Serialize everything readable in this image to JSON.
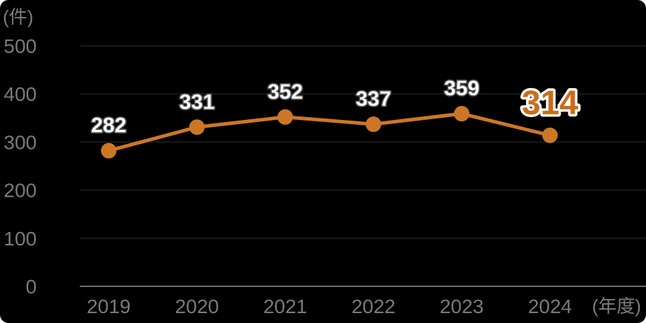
{
  "chart_data": {
    "type": "line",
    "categories": [
      "2019",
      "2020",
      "2021",
      "2022",
      "2023",
      "2024"
    ],
    "values": [
      282,
      331,
      352,
      337,
      359,
      314
    ],
    "data_labels": [
      "282",
      "331",
      "352",
      "337",
      "359",
      "314"
    ],
    "y_unit_label": "(件)",
    "x_unit_label": "(年度)",
    "yticks": [
      0,
      100,
      200,
      300,
      400,
      500
    ],
    "ylim": [
      0,
      500
    ],
    "grid": true,
    "legend": "none",
    "highlight_last": true,
    "colors": {
      "background": "#000000",
      "line": "#cd7726",
      "marker": "#cd7726",
      "grid": "#1a1a1a",
      "axis": "#6e6e6e",
      "tick_label": "#7a7a7a",
      "unit_label": "#7d7d7d",
      "data_label": "#fafafa",
      "data_label_outline": "#4f4f4f",
      "final_label": "#c86e19",
      "final_label_outline": "#ffffff"
    }
  }
}
